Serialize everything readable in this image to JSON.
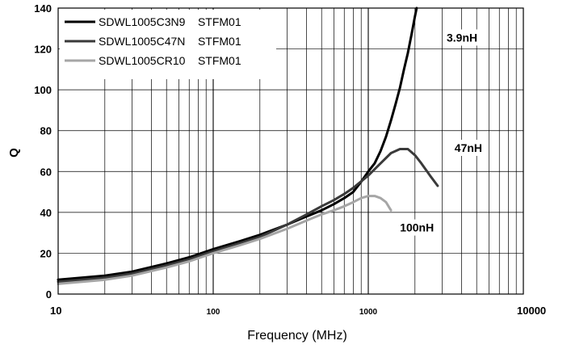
{
  "chart_data": {
    "type": "line",
    "xlabel": "Frequency (MHz)",
    "ylabel": "Q",
    "xscale": "log",
    "xlim": [
      10,
      10000
    ],
    "ylim": [
      0,
      140
    ],
    "grid": true,
    "legend_position": "top-left",
    "x_ticks": [
      "10",
      "100",
      "1000",
      "10000"
    ],
    "y_ticks": [
      "0",
      "20",
      "40",
      "60",
      "80",
      "100",
      "120",
      "140"
    ],
    "series": [
      {
        "name": "SDWL1005C3N9    STFM01",
        "color": "#000000",
        "x": [
          10,
          20,
          30,
          50,
          70,
          100,
          150,
          200,
          300,
          400,
          500,
          600,
          700,
          800,
          900,
          1000,
          1100,
          1200,
          1300,
          1400,
          1500,
          1600,
          1700,
          1800,
          1900,
          2000,
          2050
        ],
        "y": [
          7,
          9,
          11,
          15,
          18,
          22,
          26,
          29,
          34,
          38,
          41,
          44,
          47,
          50,
          55,
          60,
          64,
          70,
          77,
          85,
          93,
          101,
          110,
          118,
          127,
          136,
          140
        ]
      },
      {
        "name": "SDWL1005C47N    STFM01",
        "color": "#3a3a3a",
        "x": [
          10,
          20,
          30,
          50,
          70,
          100,
          150,
          200,
          300,
          400,
          500,
          600,
          700,
          800,
          1000,
          1200,
          1400,
          1600,
          1800,
          2000,
          2200,
          2500,
          2800
        ],
        "y": [
          6,
          8,
          10,
          14,
          17,
          21,
          25,
          28,
          34,
          39,
          43,
          46,
          49,
          52,
          58,
          64,
          69,
          71,
          71,
          68,
          64,
          58,
          53
        ]
      },
      {
        "name": "SDWL1005CR10    STFM01",
        "color": "#a6a6a6",
        "x": [
          10,
          20,
          30,
          50,
          70,
          100,
          150,
          200,
          300,
          400,
          500,
          600,
          700,
          800,
          900,
          1000,
          1100,
          1200,
          1300,
          1400
        ],
        "y": [
          5,
          7,
          9,
          13,
          16,
          20,
          24,
          27,
          32,
          36,
          39,
          41,
          43,
          45,
          47,
          48,
          48,
          47,
          45,
          41
        ]
      }
    ],
    "annotations": [
      {
        "text": "3.9nH",
        "x": 3200,
        "y": 124
      },
      {
        "text": "47nH",
        "x": 3600,
        "y": 70
      },
      {
        "text": "100nH",
        "x": 1600,
        "y": 31
      }
    ]
  }
}
